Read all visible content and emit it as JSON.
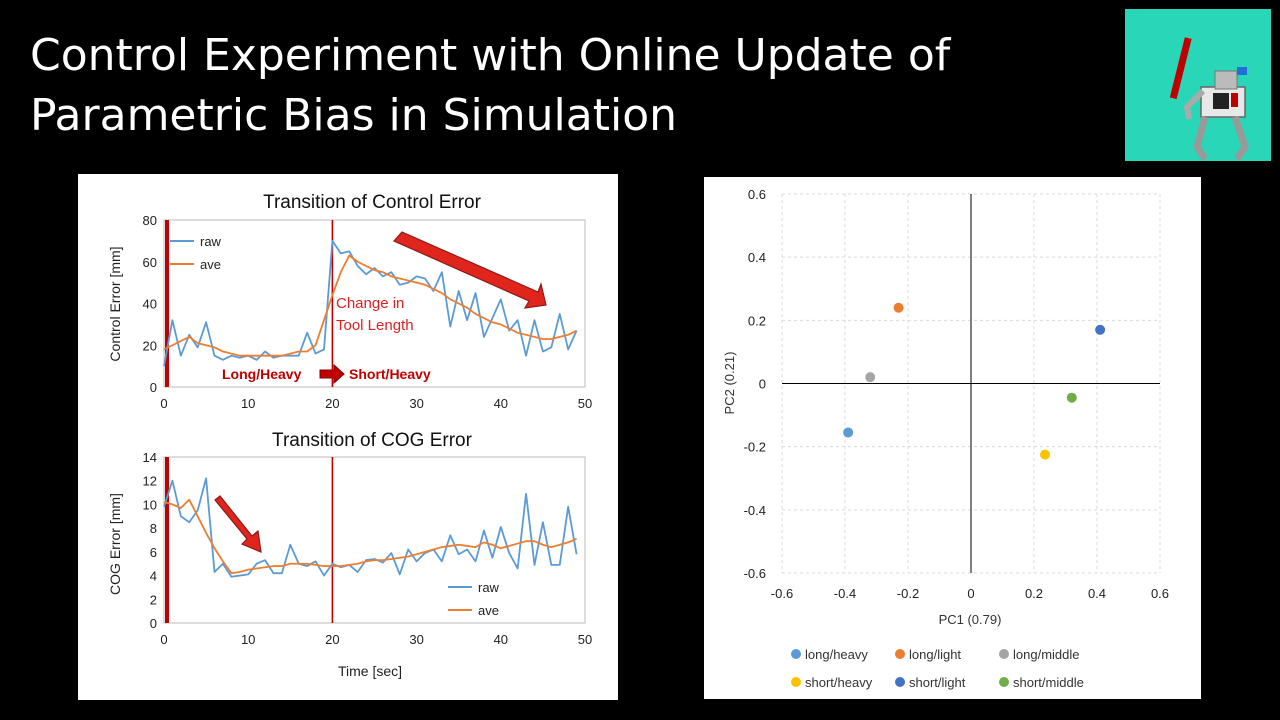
{
  "slide": {
    "title_line1": "Control Experiment with Online Update of",
    "title_line2": "Parametric Bias in Simulation"
  },
  "colors": {
    "raw": "#5b9bd5",
    "ave": "#ed7d31",
    "marker": "#c00000",
    "thumb_bg": "#2ad6b8"
  },
  "chart_data": [
    {
      "type": "line",
      "title": "Transition of Control Error",
      "xlabel": "",
      "ylabel": "Control Error [mm]",
      "xlim": [
        0,
        50
      ],
      "ylim": [
        0,
        80
      ],
      "xticks": [
        0,
        10,
        20,
        30,
        40,
        50
      ],
      "yticks": [
        0,
        20,
        40,
        60,
        80
      ],
      "x": [
        0,
        1,
        2,
        3,
        4,
        5,
        6,
        7,
        8,
        9,
        10,
        11,
        12,
        13,
        14,
        15,
        16,
        17,
        18,
        19,
        20,
        21,
        22,
        23,
        24,
        25,
        26,
        27,
        28,
        29,
        30,
        31,
        32,
        33,
        34,
        35,
        36,
        37,
        38,
        39,
        40,
        41,
        42,
        43,
        44,
        45,
        46,
        47,
        48,
        49
      ],
      "series": [
        {
          "name": "raw",
          "values": [
            10,
            32,
            15,
            25,
            19,
            31,
            15,
            13,
            15,
            14,
            15,
            13,
            17,
            14,
            15,
            15,
            15,
            26,
            16,
            18,
            70,
            64,
            65,
            58,
            54,
            57,
            53,
            55,
            49,
            50,
            53,
            52,
            46,
            55,
            29,
            46,
            32,
            45,
            24,
            33,
            42,
            27,
            32,
            15,
            32,
            17,
            19,
            35,
            18,
            27
          ]
        },
        {
          "name": "ave",
          "values": [
            18,
            20,
            22,
            24,
            21,
            20,
            19,
            17,
            16,
            15,
            15,
            15,
            15,
            15,
            15,
            16,
            17,
            17,
            20,
            32,
            44,
            55,
            63,
            60,
            58,
            56,
            55,
            53,
            52,
            51,
            50,
            49,
            47,
            45,
            42,
            40,
            38,
            35,
            33,
            31,
            30,
            28,
            26,
            25,
            24,
            23,
            23,
            24,
            25,
            27
          ]
        }
      ],
      "annotations": {
        "change_label_1": "Change in",
        "change_label_2": "Tool Length",
        "before": "Long/Heavy",
        "after": "Short/Heavy"
      }
    },
    {
      "type": "line",
      "title": "Transition of COG Error",
      "xlabel": "Time [sec]",
      "ylabel": "COG Error [mm]",
      "xlim": [
        0,
        50
      ],
      "ylim": [
        0,
        14
      ],
      "xticks": [
        0,
        10,
        20,
        30,
        40,
        50
      ],
      "yticks": [
        0,
        2,
        4,
        6,
        8,
        10,
        12,
        14
      ],
      "x": [
        0,
        1,
        2,
        3,
        4,
        5,
        6,
        7,
        8,
        9,
        10,
        11,
        12,
        13,
        14,
        15,
        16,
        17,
        18,
        19,
        20,
        21,
        22,
        23,
        24,
        25,
        26,
        27,
        28,
        29,
        30,
        31,
        32,
        33,
        34,
        35,
        36,
        37,
        38,
        39,
        40,
        41,
        42,
        43,
        44,
        45,
        46,
        47,
        48,
        49
      ],
      "series": [
        {
          "name": "raw",
          "values": [
            9.8,
            12,
            9,
            8.5,
            9.5,
            12.2,
            4.3,
            5,
            3.9,
            4,
            4.1,
            5,
            5.3,
            4.2,
            4.2,
            6.6,
            5,
            4.8,
            5.2,
            4,
            5,
            4.7,
            4.9,
            4.3,
            5.3,
            5.4,
            5.1,
            5.9,
            4.1,
            6.2,
            5.2,
            5.9,
            6.2,
            5.2,
            7.4,
            5.8,
            6.2,
            5.2,
            7.8,
            5.5,
            8.1,
            5.9,
            4.6,
            10.9,
            4.9,
            8.5,
            4.9,
            4.9,
            9.8,
            5.8
          ]
        },
        {
          "name": "ave",
          "values": [
            10.2,
            10,
            9.7,
            10.4,
            9,
            7.6,
            6.3,
            5.2,
            4.2,
            4.3,
            4.5,
            4.6,
            4.7,
            4.8,
            4.8,
            5,
            5,
            5,
            4.9,
            4.8,
            4.8,
            4.8,
            4.9,
            5,
            5.2,
            5.3,
            5.3,
            5.4,
            5.5,
            5.6,
            5.8,
            6,
            6.2,
            6.4,
            6.5,
            6.6,
            6.5,
            6.4,
            6.8,
            6.6,
            6.3,
            6.5,
            6.7,
            6.9,
            6.9,
            6.6,
            6.4,
            6.6,
            6.8,
            7.1
          ]
        }
      ]
    },
    {
      "type": "scatter",
      "title": "",
      "xlabel": "PC1 (0.79)",
      "ylabel": "PC2 (0.21)",
      "xlim": [
        -0.6,
        0.6
      ],
      "ylim": [
        -0.6,
        0.6
      ],
      "xticks": [
        -0.6,
        -0.4,
        -0.2,
        0,
        0.2,
        0.4,
        0.6
      ],
      "yticks": [
        -0.6,
        -0.4,
        -0.2,
        0,
        0.2,
        0.4,
        0.6
      ],
      "grid": true,
      "legend": "bottom",
      "series": [
        {
          "name": "long/heavy",
          "color": "#5b9bd5",
          "x": -0.39,
          "y": -0.155
        },
        {
          "name": "long/light",
          "color": "#ed7d31",
          "x": -0.23,
          "y": 0.24
        },
        {
          "name": "long/middle",
          "color": "#a5a5a5",
          "x": -0.32,
          "y": 0.02
        },
        {
          "name": "short/heavy",
          "color": "#ffc000",
          "x": 0.235,
          "y": -0.225
        },
        {
          "name": "short/light",
          "color": "#4472c4",
          "x": 0.41,
          "y": 0.17
        },
        {
          "name": "short/middle",
          "color": "#70ad47",
          "x": 0.32,
          "y": -0.045
        }
      ]
    }
  ]
}
